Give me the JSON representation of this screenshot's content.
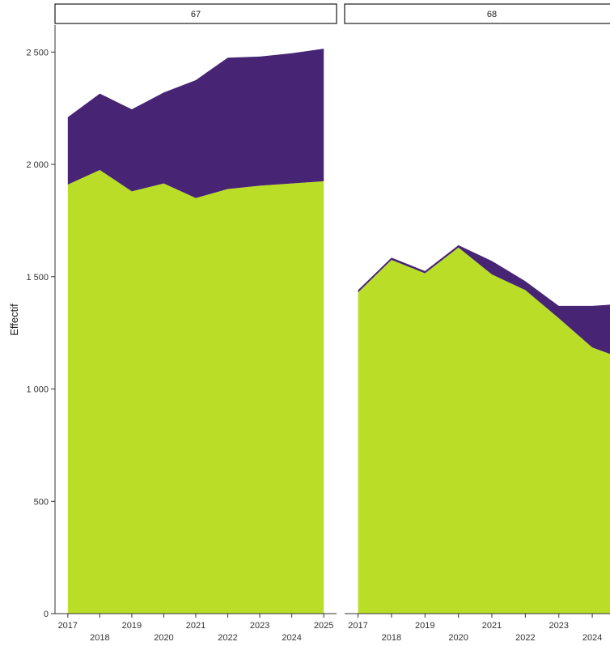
{
  "chart_data": {
    "type": "area",
    "ylabel": "Effectif",
    "xlabel": "",
    "ylim": [
      0,
      2620
    ],
    "y_ticks": [
      0,
      500,
      1000,
      1500,
      2000,
      2500
    ],
    "y_tick_labels": [
      "0",
      "500",
      "1 000",
      "1 500",
      "2 000",
      "2 500"
    ],
    "x_ticks": [
      2017,
      2018,
      2019,
      2020,
      2021,
      2022,
      2023,
      2024,
      2025
    ],
    "x_tick_labels": [
      "2017",
      "2018",
      "2019",
      "2020",
      "2021",
      "2022",
      "2023",
      "2024",
      "2025"
    ],
    "xlim": [
      2016.6,
      2025.4
    ],
    "stacked": true,
    "grid": false,
    "colors": [
      "#bade28",
      "#482574"
    ],
    "facets": [
      {
        "label": "67",
        "x": [
          2017,
          2018,
          2019,
          2020,
          2021,
          2022,
          2023,
          2024,
          2025
        ],
        "series": [
          {
            "values": [
              1910,
              1975,
              1880,
              1915,
              1850,
              1890,
              1905,
              1915,
              1925
            ]
          },
          {
            "values": [
              300,
              340,
              365,
              405,
              525,
              585,
              575,
              580,
              590
            ]
          }
        ]
      },
      {
        "label": "68",
        "x": [
          2017,
          2018,
          2019,
          2020,
          2021,
          2022,
          2023,
          2024,
          2025
        ],
        "series": [
          {
            "values": [
              1430,
              1575,
              1515,
              1630,
              1510,
              1440,
              1315,
              1185,
              1130
            ]
          },
          {
            "values": [
              10,
              10,
              10,
              10,
              60,
              40,
              55,
              185,
              250
            ]
          }
        ]
      }
    ]
  }
}
